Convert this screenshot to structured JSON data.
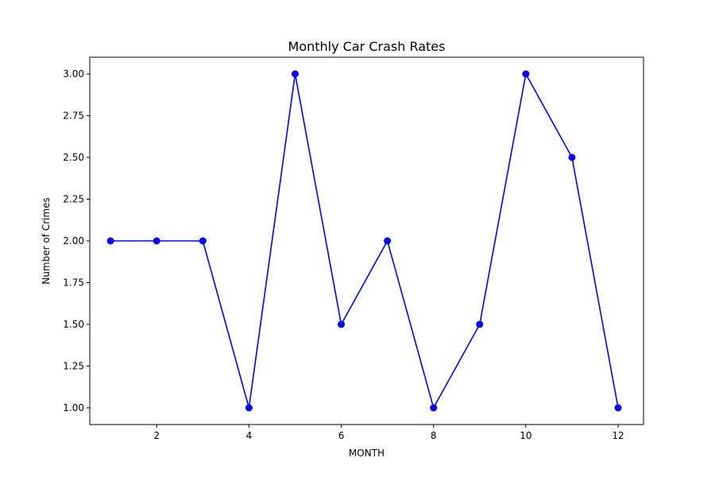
{
  "chart_data": {
    "type": "line",
    "title": "Monthly Car Crash Rates",
    "xlabel": "MONTH",
    "ylabel": "Number of Crimes",
    "xlim": [
      0.55,
      12.55
    ],
    "ylim": [
      0.9,
      3.1
    ],
    "x_ticks": [
      2,
      4,
      6,
      8,
      10,
      12
    ],
    "x_tick_labels": [
      "2",
      "4",
      "6",
      "8",
      "10",
      "12"
    ],
    "y_ticks": [
      1.0,
      1.25,
      1.5,
      1.75,
      2.0,
      2.25,
      2.5,
      2.75,
      3.0
    ],
    "y_tick_labels": [
      "1.00",
      "1.25",
      "1.50",
      "1.75",
      "2.00",
      "2.25",
      "2.50",
      "2.75",
      "3.00"
    ],
    "grid": false,
    "legend": "none",
    "series": [
      {
        "color": "#0000ff",
        "marker": "circle",
        "x": [
          1,
          2,
          3,
          4,
          5,
          6,
          7,
          8,
          9,
          10,
          11,
          12
        ],
        "y": [
          2.0,
          2.0,
          2.0,
          1.0,
          3.0,
          1.5,
          2.0,
          1.0,
          1.5,
          3.0,
          2.5,
          1.0
        ]
      }
    ]
  }
}
